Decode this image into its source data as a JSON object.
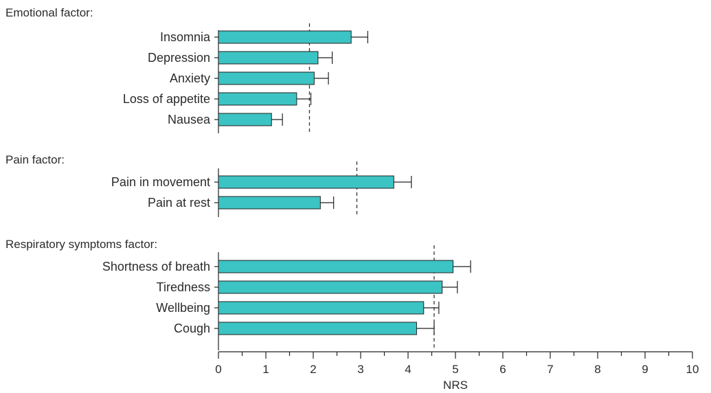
{
  "chart_data": {
    "type": "bar",
    "orientation": "horizontal",
    "xlabel": "NRS",
    "xlim": [
      0,
      10
    ],
    "xticks": [
      "0",
      "1",
      "2",
      "3",
      "4",
      "5",
      "6",
      "7",
      "8",
      "9",
      "10"
    ],
    "bar_color": "#3cc3c3",
    "groups": [
      {
        "title": "Emotional factor:",
        "categories": [
          "Insomnia",
          "Depression",
          "Anxiety",
          "Loss of appetite",
          "Nausea"
        ],
        "values": [
          2.8,
          2.1,
          2.02,
          1.65,
          1.12
        ],
        "error": [
          0.35,
          0.3,
          0.3,
          0.3,
          0.23
        ],
        "reference_line": 1.92
      },
      {
        "title": "Pain factor:",
        "categories": [
          "Pain in movement",
          "Pain at rest"
        ],
        "values": [
          3.7,
          2.15
        ],
        "error": [
          0.37,
          0.28
        ],
        "reference_line": 2.92
      },
      {
        "title": "Respiratory symptoms factor:",
        "categories": [
          "Shortness of breath",
          "Tiredness",
          "Wellbeing",
          "Cough"
        ],
        "values": [
          4.95,
          4.72,
          4.33,
          4.18
        ],
        "error": [
          0.37,
          0.32,
          0.32,
          0.37
        ],
        "reference_line": 4.55
      }
    ]
  }
}
